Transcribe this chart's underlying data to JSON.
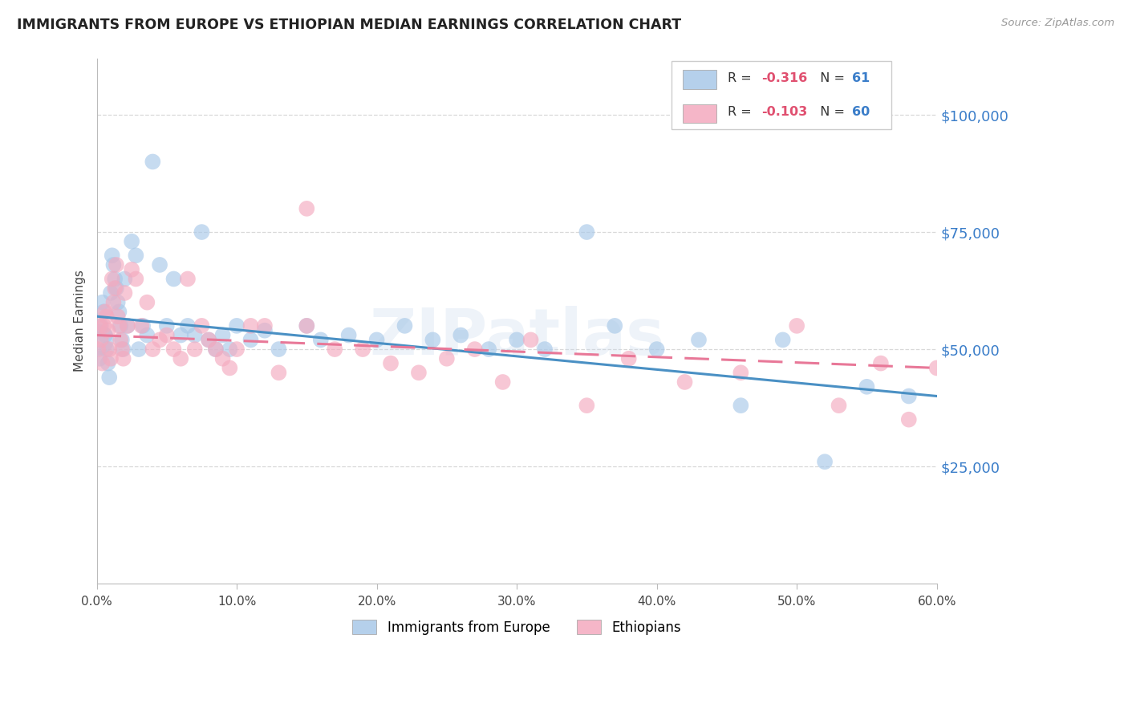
{
  "title": "IMMIGRANTS FROM EUROPE VS ETHIOPIAN MEDIAN EARNINGS CORRELATION CHART",
  "source": "Source: ZipAtlas.com",
  "ylabel": "Median Earnings",
  "ytick_labels": [
    "$25,000",
    "$50,000",
    "$75,000",
    "$100,000"
  ],
  "ytick_values": [
    25000,
    50000,
    75000,
    100000
  ],
  "blue_scatter_x": [
    0.001,
    0.002,
    0.003,
    0.004,
    0.005,
    0.006,
    0.007,
    0.008,
    0.009,
    0.01,
    0.011,
    0.012,
    0.013,
    0.014,
    0.015,
    0.016,
    0.017,
    0.018,
    0.019,
    0.02,
    0.022,
    0.025,
    0.028,
    0.03,
    0.033,
    0.036,
    0.04,
    0.045,
    0.05,
    0.055,
    0.06,
    0.065,
    0.07,
    0.075,
    0.08,
    0.085,
    0.09,
    0.095,
    0.1,
    0.11,
    0.12,
    0.13,
    0.15,
    0.16,
    0.18,
    0.2,
    0.22,
    0.24,
    0.26,
    0.28,
    0.3,
    0.32,
    0.35,
    0.37,
    0.4,
    0.43,
    0.46,
    0.49,
    0.52,
    0.55,
    0.58
  ],
  "blue_scatter_y": [
    52000,
    48000,
    55000,
    60000,
    58000,
    53000,
    50000,
    47000,
    44000,
    62000,
    70000,
    68000,
    65000,
    63000,
    60000,
    58000,
    55000,
    52000,
    50000,
    65000,
    55000,
    73000,
    70000,
    50000,
    55000,
    53000,
    90000,
    68000,
    55000,
    65000,
    53000,
    55000,
    53000,
    75000,
    52000,
    50000,
    53000,
    50000,
    55000,
    52000,
    54000,
    50000,
    55000,
    52000,
    53000,
    52000,
    55000,
    52000,
    53000,
    50000,
    52000,
    50000,
    75000,
    55000,
    50000,
    52000,
    38000,
    52000,
    26000,
    42000,
    40000
  ],
  "blue_scatter_sizes": [
    800,
    200,
    200,
    200,
    200,
    200,
    200,
    200,
    200,
    200,
    200,
    200,
    200,
    200,
    200,
    200,
    200,
    200,
    200,
    200,
    200,
    200,
    200,
    200,
    200,
    200,
    200,
    200,
    200,
    200,
    200,
    200,
    200,
    200,
    200,
    200,
    200,
    200,
    200,
    200,
    200,
    200,
    200,
    200,
    200,
    200,
    200,
    200,
    200,
    200,
    200,
    200,
    200,
    200,
    200,
    200,
    200,
    200,
    200,
    200,
    200
  ],
  "pink_scatter_x": [
    0.001,
    0.002,
    0.003,
    0.004,
    0.005,
    0.006,
    0.007,
    0.008,
    0.009,
    0.01,
    0.011,
    0.012,
    0.013,
    0.014,
    0.015,
    0.016,
    0.017,
    0.018,
    0.019,
    0.02,
    0.022,
    0.025,
    0.028,
    0.032,
    0.036,
    0.04,
    0.045,
    0.05,
    0.055,
    0.06,
    0.065,
    0.07,
    0.075,
    0.08,
    0.085,
    0.09,
    0.095,
    0.1,
    0.11,
    0.12,
    0.13,
    0.15,
    0.17,
    0.19,
    0.21,
    0.23,
    0.25,
    0.27,
    0.29,
    0.31,
    0.35,
    0.38,
    0.42,
    0.46,
    0.5,
    0.53,
    0.56,
    0.58,
    0.6,
    0.15
  ],
  "pink_scatter_y": [
    50000,
    55000,
    52000,
    47000,
    55000,
    58000,
    57000,
    54000,
    50000,
    48000,
    65000,
    60000,
    63000,
    68000,
    57000,
    55000,
    52000,
    50000,
    48000,
    62000,
    55000,
    67000,
    65000,
    55000,
    60000,
    50000,
    52000,
    53000,
    50000,
    48000,
    65000,
    50000,
    55000,
    52000,
    50000,
    48000,
    46000,
    50000,
    55000,
    55000,
    45000,
    55000,
    50000,
    50000,
    47000,
    45000,
    48000,
    50000,
    43000,
    52000,
    38000,
    48000,
    43000,
    45000,
    55000,
    38000,
    47000,
    35000,
    46000,
    80000
  ],
  "pink_scatter_sizes": [
    200,
    200,
    200,
    200,
    200,
    200,
    200,
    200,
    200,
    200,
    200,
    200,
    200,
    200,
    200,
    200,
    200,
    200,
    200,
    200,
    200,
    200,
    200,
    200,
    200,
    200,
    200,
    200,
    200,
    200,
    200,
    200,
    200,
    200,
    200,
    200,
    200,
    200,
    200,
    200,
    200,
    200,
    200,
    200,
    200,
    200,
    200,
    200,
    200,
    200,
    200,
    200,
    200,
    200,
    200,
    200,
    200,
    200,
    200,
    200
  ],
  "blue_line_y0": 57000,
  "blue_line_y1": 40000,
  "pink_line_y0": 53000,
  "pink_line_y1": 46000,
  "xlim": [
    0.0,
    0.6
  ],
  "ylim": [
    0,
    112000
  ],
  "blue_color": "#A8C8E8",
  "pink_color": "#F4AABF",
  "blue_line_color": "#4A90C4",
  "pink_line_color": "#E87898",
  "watermark": "ZIPatlas",
  "background_color": "#FFFFFF",
  "grid_color": "#D8D8D8",
  "R_color": "#E05070",
  "N_color": "#3A7DC9",
  "legend_R_blue": "-0.316",
  "legend_N_blue": "61",
  "legend_R_pink": "-0.103",
  "legend_N_pink": "60"
}
